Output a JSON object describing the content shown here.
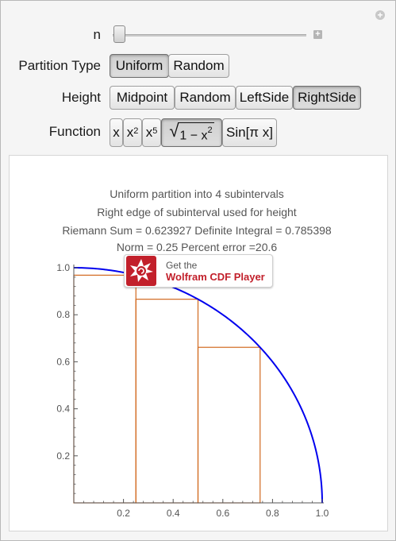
{
  "controls": {
    "n_label": "n",
    "n_slider_fraction": 0.0,
    "partition": {
      "label": "Partition Type",
      "options": [
        "Uniform",
        "Random"
      ],
      "selected": "Uniform"
    },
    "height": {
      "label": "Height",
      "options": [
        "Midpoint",
        "Random",
        "LeftSide",
        "RightSide"
      ],
      "selected": "RightSide"
    },
    "function": {
      "label": "Function",
      "options": {
        "x": "x",
        "x2_base": "x",
        "x2_exp": "2",
        "x5_base": "x",
        "x5_exp": "5",
        "sqrt_inner": "1 − x",
        "sqrt_exp": "2",
        "sin": "Sin[π x]"
      },
      "selected": "sqrt"
    }
  },
  "plot": {
    "title_lines": [
      "Uniform partition into 4 subintervals",
      "Right edge of subinterval used for height",
      "Riemann Sum = 0.623927     Definite Integral = 0.785398",
      "Norm = 0.25     Percent error =20.6"
    ],
    "colors": {
      "curve": "#0000ee",
      "rect": "#d2691e",
      "axis": "#555555"
    }
  },
  "chart_data": {
    "type": "line",
    "function": "sqrt(1 - x^2)",
    "xlim": [
      0,
      1.0
    ],
    "ylim": [
      0,
      1.0
    ],
    "x_ticks": [
      "0.2",
      "0.4",
      "0.6",
      "0.8",
      "1.0"
    ],
    "y_ticks": [
      "0.2",
      "0.4",
      "0.6",
      "0.8",
      "1.0"
    ],
    "rectangles": [
      {
        "x0": 0.0,
        "x1": 0.25,
        "height": 0.968246
      },
      {
        "x0": 0.25,
        "x1": 0.5,
        "height": 0.866025
      },
      {
        "x0": 0.5,
        "x1": 0.75,
        "height": 0.661438
      },
      {
        "x0": 0.75,
        "x1": 1.0,
        "height": 0.0
      }
    ],
    "grid": false
  },
  "badge": {
    "get_text": "Get the",
    "product_text": "Wolfram CDF Player",
    "icon": "wolfram-spikey-icon"
  },
  "corner_icon": "plus-circle-icon"
}
